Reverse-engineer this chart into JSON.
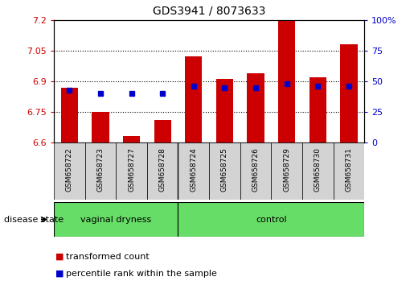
{
  "title": "GDS3941 / 8073633",
  "samples": [
    "GSM658722",
    "GSM658723",
    "GSM658727",
    "GSM658728",
    "GSM658724",
    "GSM658725",
    "GSM658726",
    "GSM658729",
    "GSM658730",
    "GSM658731"
  ],
  "bar_values": [
    6.87,
    6.75,
    6.63,
    6.71,
    7.02,
    6.91,
    6.94,
    7.2,
    6.92,
    7.08
  ],
  "percentile_values": [
    43,
    40,
    40,
    40,
    46,
    45,
    45,
    48,
    46,
    46
  ],
  "y_min": 6.6,
  "y_max": 7.2,
  "yticks_left": [
    6.6,
    6.75,
    6.9,
    7.05,
    7.2
  ],
  "yticks_right": [
    0,
    25,
    50,
    75,
    100
  ],
  "bar_color": "#cc0000",
  "dot_color": "#0000cc",
  "groups": [
    {
      "label": "vaginal dryness",
      "start": 0,
      "end": 4
    },
    {
      "label": "control",
      "start": 4,
      "end": 10
    }
  ],
  "xlabel_group": "disease state",
  "legend_items": [
    {
      "label": "transformed count",
      "color": "#cc0000"
    },
    {
      "label": "percentile rank within the sample",
      "color": "#0000cc"
    }
  ],
  "sample_bg_color": "#d3d3d3",
  "group_fill_color": "#66dd66",
  "bg_color": "#ffffff"
}
